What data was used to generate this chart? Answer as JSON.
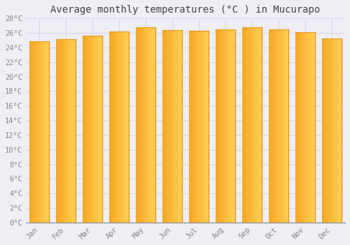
{
  "title": "Average monthly temperatures (°C ) in Mucurapo",
  "months": [
    "Jan",
    "Feb",
    "Mar",
    "Apr",
    "May",
    "Jun",
    "Jul",
    "Aug",
    "Sep",
    "Oct",
    "Nov",
    "Dec"
  ],
  "temperatures": [
    24.9,
    25.1,
    25.6,
    26.2,
    26.8,
    26.4,
    26.3,
    26.5,
    26.8,
    26.5,
    26.1,
    25.2
  ],
  "bar_color_left": "#F5A623",
  "bar_color_right": "#FFD055",
  "bar_color_edge": "#E8951A",
  "ylim": [
    0,
    28
  ],
  "ytick_step": 2,
  "background_color": "#eeeef5",
  "plot_bg_color": "#eeeef5",
  "grid_color": "#d8d8e8",
  "title_fontsize": 10,
  "tick_fontsize": 7.5,
  "font_family": "monospace",
  "title_color": "#444444",
  "tick_color": "#888888"
}
